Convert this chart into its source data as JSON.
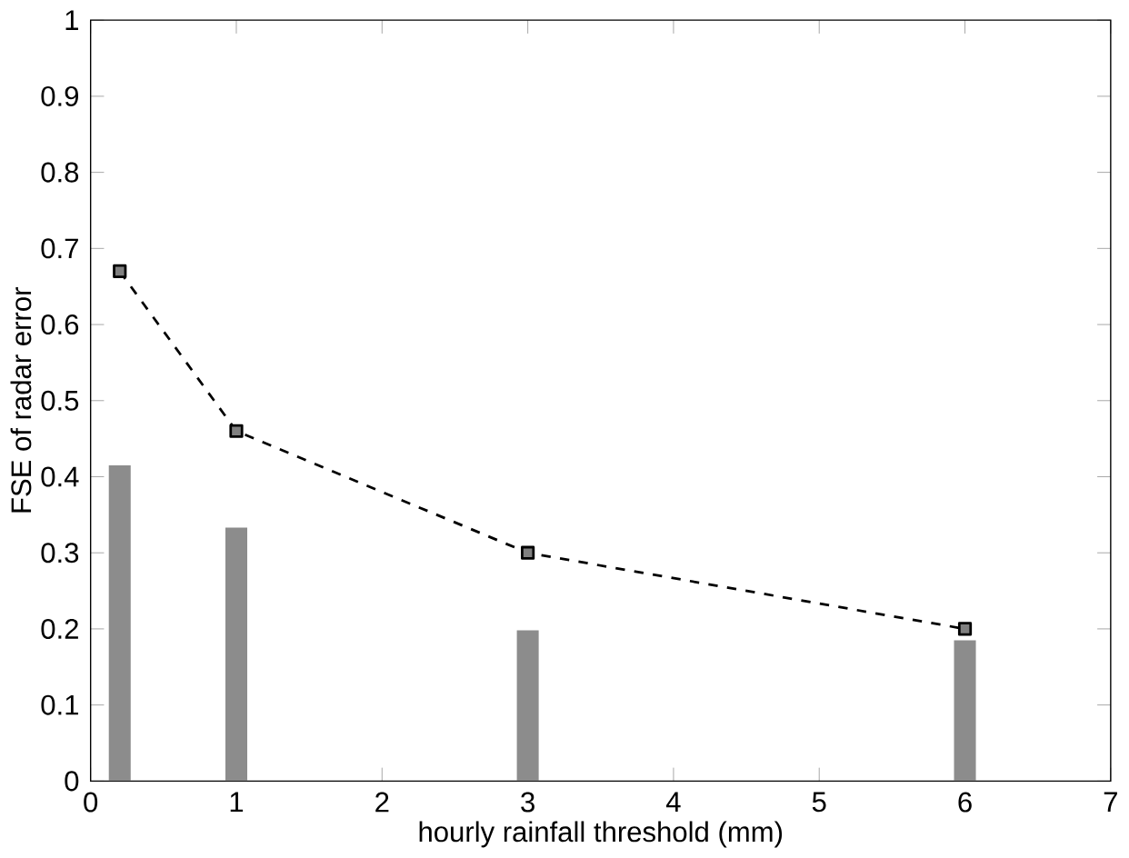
{
  "chart_data": {
    "type": "bar",
    "xlabel": "hourly rainfall threshold  (mm)",
    "ylabel": "FSE of radar error",
    "xlim": [
      0,
      7
    ],
    "ylim": [
      0,
      1
    ],
    "xticks": [
      0,
      1,
      2,
      3,
      4,
      5,
      6,
      7
    ],
    "yticks": [
      0,
      0.1,
      0.2,
      0.3,
      0.4,
      0.5,
      0.6,
      0.7,
      0.8,
      0.9,
      1
    ],
    "grid": false,
    "series": [
      {
        "color": "#8c8c8c",
        "x": [
          0.2,
          1,
          3,
          6
        ],
        "values": [
          0.415,
          0.333,
          0.198,
          0.185
        ]
      },
      {
        "type": "line",
        "color": "#000000",
        "marker": "square",
        "line_style": "dashed",
        "x": [
          0.2,
          1,
          3,
          6
        ],
        "values": [
          0.67,
          0.46,
          0.3,
          0.2
        ]
      }
    ]
  }
}
